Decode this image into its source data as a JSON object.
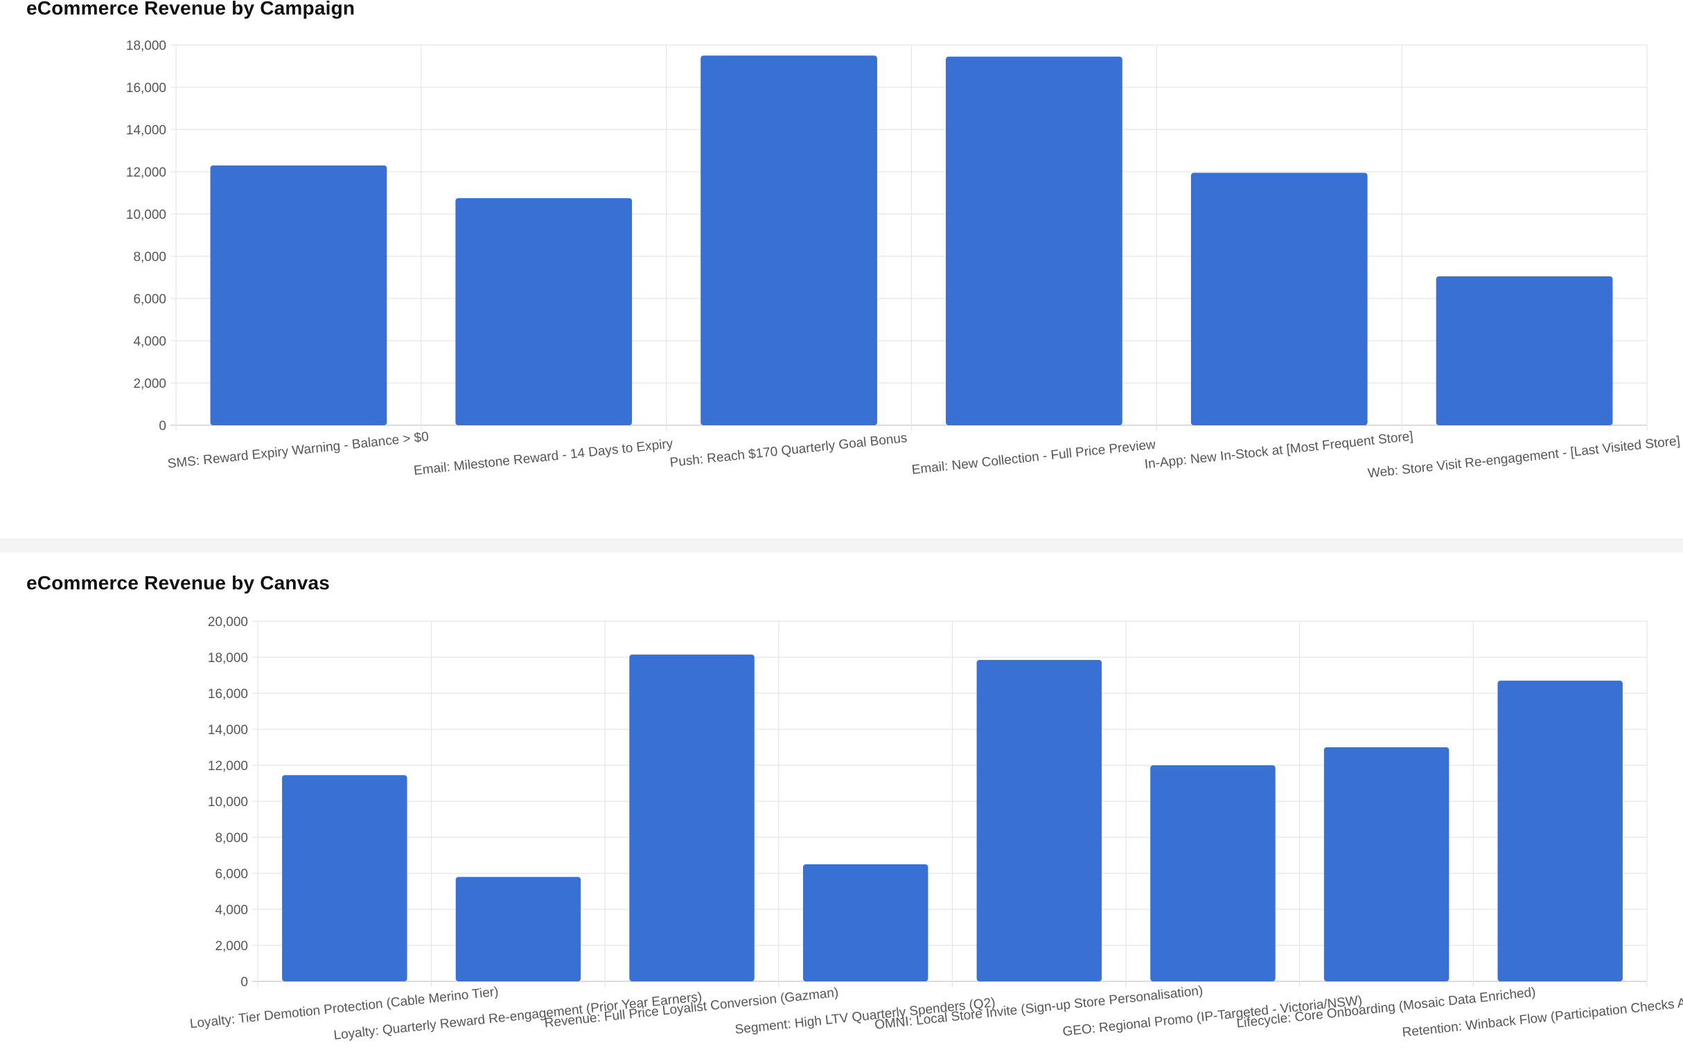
{
  "chart_data": [
    {
      "type": "bar",
      "title": "eCommerce Revenue by Campaign",
      "categories": [
        "SMS: Reward Expiry Warning - Balance > $0",
        "Email: Milestone Reward - 14 Days to Expiry",
        "Push: Reach $170 Quarterly Goal Bonus",
        "Email: New Collection - Full Price Preview",
        "In-App: New In-Stock at [Most Frequent Store]",
        "Web: Store Visit Re-engagement - [Last Visited Store]"
      ],
      "values": [
        12300,
        10750,
        17500,
        17450,
        11950,
        7050
      ],
      "ylim": [
        0,
        18000
      ],
      "yticks": [
        0,
        2000,
        4000,
        6000,
        8000,
        10000,
        12000,
        14000,
        16000,
        18000
      ],
      "ytick_labels": [
        "0",
        "2,000",
        "4,000",
        "6,000",
        "8,000",
        "10,000",
        "12,000",
        "14,000",
        "16,000",
        "18,000"
      ],
      "grid": true,
      "bar_color": "#3870d4"
    },
    {
      "type": "bar",
      "title": "eCommerce Revenue by Canvas",
      "categories": [
        "Loyalty: Tier Demotion Protection (Cable Merino Tier)",
        "Loyalty: Quarterly Reward Re-engagement (Prior Year Earners)",
        "Revenue: Full Price Loyalist Conversion (Gazman)",
        "Segment: High LTV Quarterly Spenders (Q2)",
        "OMNI: Local Store Invite (Sign-up Store Personalisation)",
        "GEO: Regional Promo (IP-Targeted - Victoria/NSW)",
        "Lifecycle: Core Onboarding (Mosaic Data Enriched)",
        "Retention: Winback Flow (Participation Checks Active)"
      ],
      "values": [
        11450,
        5800,
        18150,
        6500,
        17850,
        12000,
        13000,
        16700
      ],
      "ylim": [
        0,
        20000
      ],
      "yticks": [
        0,
        2000,
        4000,
        6000,
        8000,
        10000,
        12000,
        14000,
        16000,
        18000,
        20000
      ],
      "ytick_labels": [
        "0",
        "2,000",
        "4,000",
        "6,000",
        "8,000",
        "10,000",
        "12,000",
        "14,000",
        "16,000",
        "18,000",
        "20,000"
      ],
      "grid": true,
      "bar_color": "#3870d4"
    }
  ]
}
